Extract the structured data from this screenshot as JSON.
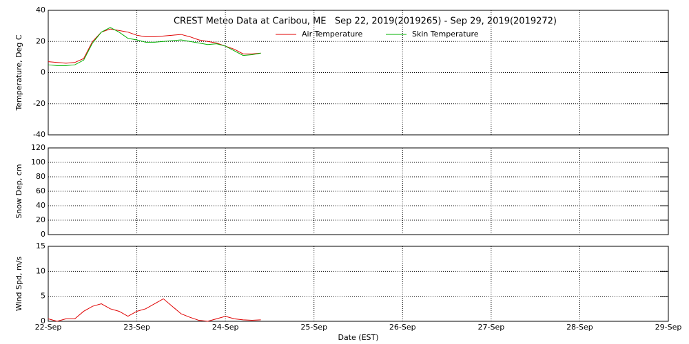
{
  "chart_data": [
    {
      "type": "line",
      "title": "CREST Meteo Data at Caribou, ME   Sep 22, 2019(2019265) - Sep 29, 2019(2019272)",
      "ylabel": "Temperature, Deg C",
      "ylim": [
        -40,
        40
      ],
      "yticks": [
        -40,
        -20,
        0,
        20,
        40
      ],
      "grid": true,
      "x": [
        0,
        0.1,
        0.2,
        0.3,
        0.4,
        0.5,
        0.6,
        0.7,
        0.8,
        0.9,
        1.0,
        1.1,
        1.2,
        1.3,
        1.4,
        1.5,
        1.6,
        1.7,
        1.8,
        1.9,
        2.0,
        2.1,
        2.2,
        2.3,
        2.4
      ],
      "series": [
        {
          "name": "Air Temperature",
          "color": "#e00000",
          "values": [
            7,
            6.5,
            6,
            6.5,
            9,
            20,
            26,
            28,
            27,
            26,
            24,
            23,
            23,
            23.5,
            24,
            24.5,
            23,
            21,
            20,
            19,
            17,
            15,
            12,
            12,
            12.5
          ]
        },
        {
          "name": "Skin Temperature",
          "color": "#00b000",
          "values": [
            5,
            4.5,
            4.5,
            5,
            8,
            19,
            26,
            29,
            26,
            22,
            21,
            19.5,
            19.5,
            20,
            20.5,
            21,
            20,
            19,
            18,
            18.5,
            17,
            14,
            11,
            11.5,
            12.5
          ]
        }
      ]
    },
    {
      "type": "line",
      "ylabel": "Snow Dep, cm",
      "ylim": [
        0,
        120
      ],
      "yticks": [
        0,
        20,
        40,
        60,
        80,
        100,
        120
      ],
      "grid": true,
      "series": []
    },
    {
      "type": "line",
      "ylabel": "Wind Spd, m/s",
      "xlabel": "Date (EST)",
      "ylim": [
        0,
        15
      ],
      "yticks": [
        0,
        5,
        10,
        15
      ],
      "grid": true,
      "xlim": [
        0,
        7
      ],
      "xticks": [
        {
          "value": 0,
          "label": "22-Sep"
        },
        {
          "value": 1,
          "label": "23-Sep"
        },
        {
          "value": 2,
          "label": "24-Sep"
        },
        {
          "value": 3,
          "label": "25-Sep"
        },
        {
          "value": 4,
          "label": "26-Sep"
        },
        {
          "value": 5,
          "label": "27-Sep"
        },
        {
          "value": 6,
          "label": "28-Sep"
        },
        {
          "value": 7,
          "label": "29-Sep"
        }
      ],
      "x": [
        0,
        0.1,
        0.2,
        0.3,
        0.4,
        0.5,
        0.6,
        0.7,
        0.8,
        0.9,
        1.0,
        1.1,
        1.2,
        1.3,
        1.4,
        1.5,
        1.6,
        1.7,
        1.8,
        1.9,
        2.0,
        2.1,
        2.2,
        2.3,
        2.4
      ],
      "series": [
        {
          "name": "Wind Speed",
          "color": "#e00000",
          "values": [
            0.5,
            0,
            0.5,
            0.5,
            2,
            3,
            3.5,
            2.5,
            2,
            1,
            2,
            2.5,
            3.5,
            4.5,
            3,
            1.5,
            0.8,
            0.2,
            0,
            0.5,
            1,
            0.5,
            0.3,
            0.2,
            0.3
          ]
        }
      ]
    }
  ]
}
